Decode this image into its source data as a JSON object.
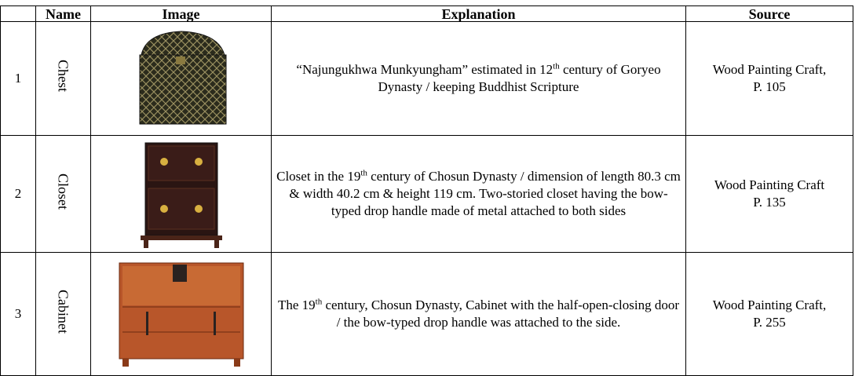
{
  "table": {
    "header": [
      "Name",
      "Image",
      "Explanation",
      "Source"
    ],
    "rows": [
      {
        "index": "1",
        "name": "Chest",
        "explanation": [
          "“Najungukhwa Munkyungham” estimated in 12",
          "th",
          " century of Goryeo Dynasty / keeping Buddhist Scripture"
        ],
        "source": [
          "Wood Painting Craft,",
          "P. 105"
        ]
      },
      {
        "index": "2",
        "name": "Closet",
        "explanation": [
          "Closet in the 19",
          "th",
          " century of Chosun Dynasty / dimension of length 80.3 cm & width 40.2 cm & height 119 cm. Two-storied closet having the bow-typed drop handle made of metal attached to both sides"
        ],
        "source": [
          "Wood Painting Craft",
          "P. 135"
        ]
      },
      {
        "index": "3",
        "name": "Cabinet",
        "explanation": [
          "The 19",
          "th",
          " century, Chosun Dynasty, Cabinet with the half-open-closing door / the bow-typed drop handle was attached to the side."
        ],
        "source": [
          "Wood Painting Craft,",
          "P. 255"
        ]
      }
    ]
  }
}
